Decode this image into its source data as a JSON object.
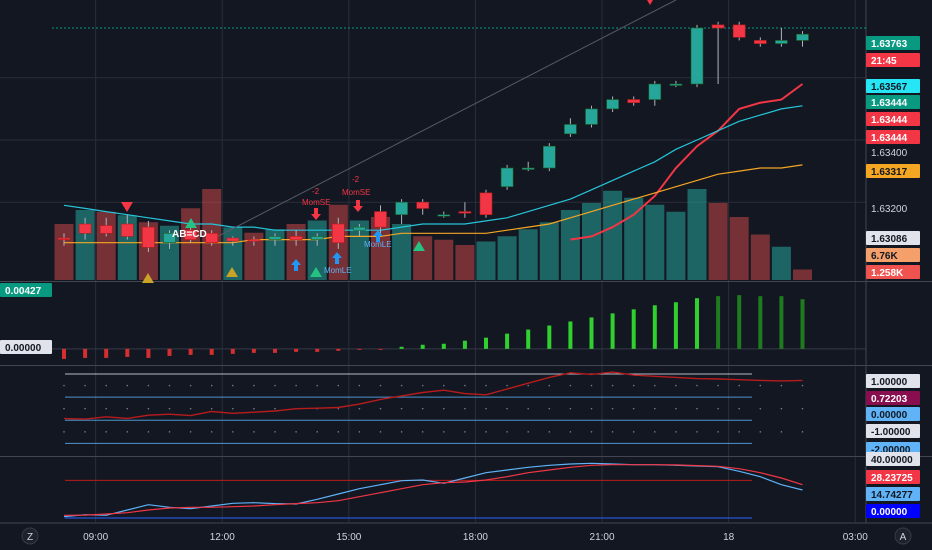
{
  "corner": {
    "left": "Z",
    "right": "A"
  },
  "chart_data": [
    {
      "type": "candlestick",
      "panel": "price",
      "ylim": [
        1.6295,
        1.6385
      ],
      "x_ticks": [
        {
          "label": "09:00",
          "t": 1.5
        },
        {
          "label": "12:00",
          "t": 7.5
        },
        {
          "label": "15:00",
          "t": 13.5
        },
        {
          "label": "18:00",
          "t": 19.5
        },
        {
          "label": "21:00",
          "t": 25.5
        },
        {
          "label": "18",
          "t": 31.5
        },
        {
          "label": "03:00",
          "t": 37.5
        }
      ],
      "y_ticks": [
        1.636,
        1.634,
        1.632
      ],
      "candles": [
        {
          "o": 1.63085,
          "h": 1.631,
          "l": 1.6306,
          "c": 1.6308
        },
        {
          "o": 1.6313,
          "h": 1.6315,
          "l": 1.6308,
          "c": 1.631
        },
        {
          "o": 1.63125,
          "h": 1.6315,
          "l": 1.6309,
          "c": 1.631
        },
        {
          "o": 1.6313,
          "h": 1.6316,
          "l": 1.6308,
          "c": 1.6309
        },
        {
          "o": 1.6312,
          "h": 1.6314,
          "l": 1.6304,
          "c": 1.63055
        },
        {
          "o": 1.6307,
          "h": 1.6311,
          "l": 1.6305,
          "c": 1.631
        },
        {
          "o": 1.6311,
          "h": 1.6312,
          "l": 1.6307,
          "c": 1.6308
        },
        {
          "o": 1.631,
          "h": 1.6311,
          "l": 1.6306,
          "c": 1.6307
        },
        {
          "o": 1.63085,
          "h": 1.6309,
          "l": 1.6306,
          "c": 1.63075
        },
        {
          "o": 1.6308,
          "h": 1.6309,
          "l": 1.6306,
          "c": 1.63075
        },
        {
          "o": 1.6308,
          "h": 1.631,
          "l": 1.6306,
          "c": 1.6309
        },
        {
          "o": 1.6309,
          "h": 1.6311,
          "l": 1.6306,
          "c": 1.6308
        },
        {
          "o": 1.6308,
          "h": 1.631,
          "l": 1.6306,
          "c": 1.6309
        },
        {
          "o": 1.6313,
          "h": 1.6315,
          "l": 1.6305,
          "c": 1.6307
        },
        {
          "o": 1.6311,
          "h": 1.6313,
          "l": 1.6309,
          "c": 1.6312
        },
        {
          "o": 1.6317,
          "h": 1.6319,
          "l": 1.631,
          "c": 1.6312
        },
        {
          "o": 1.6316,
          "h": 1.6321,
          "l": 1.6313,
          "c": 1.632
        },
        {
          "o": 1.632,
          "h": 1.6321,
          "l": 1.6316,
          "c": 1.6318
        },
        {
          "o": 1.6316,
          "h": 1.6317,
          "l": 1.6315,
          "c": 1.6316
        },
        {
          "o": 1.6317,
          "h": 1.632,
          "l": 1.6315,
          "c": 1.63165
        },
        {
          "o": 1.6323,
          "h": 1.6324,
          "l": 1.6315,
          "c": 1.6316
        },
        {
          "o": 1.6325,
          "h": 1.6332,
          "l": 1.6324,
          "c": 1.6331
        },
        {
          "o": 1.6331,
          "h": 1.6333,
          "l": 1.633,
          "c": 1.6331
        },
        {
          "o": 1.6331,
          "h": 1.6339,
          "l": 1.633,
          "c": 1.6338
        },
        {
          "o": 1.6342,
          "h": 1.6347,
          "l": 1.6341,
          "c": 1.6345
        },
        {
          "o": 1.6345,
          "h": 1.6351,
          "l": 1.6344,
          "c": 1.635
        },
        {
          "o": 1.635,
          "h": 1.6354,
          "l": 1.6349,
          "c": 1.6353
        },
        {
          "o": 1.6353,
          "h": 1.6354,
          "l": 1.6351,
          "c": 1.6352
        },
        {
          "o": 1.6353,
          "h": 1.6359,
          "l": 1.6351,
          "c": 1.6358
        },
        {
          "o": 1.6358,
          "h": 1.6359,
          "l": 1.6357,
          "c": 1.6358
        },
        {
          "o": 1.6358,
          "h": 1.6377,
          "l": 1.6357,
          "c": 1.6376
        },
        {
          "o": 1.6377,
          "h": 1.6378,
          "l": 1.6358,
          "c": 1.6376
        },
        {
          "o": 1.6377,
          "h": 1.6378,
          "l": 1.6372,
          "c": 1.6373
        },
        {
          "o": 1.6372,
          "h": 1.6373,
          "l": 1.637,
          "c": 1.6371
        },
        {
          "o": 1.6371,
          "h": 1.6376,
          "l": 1.637,
          "c": 1.6372
        },
        {
          "o": 1.6372,
          "h": 1.6375,
          "l": 1.637,
          "c": 1.6374
        }
      ],
      "volume": [
        {
          "v": 3.2,
          "up": false
        },
        {
          "v": 4.0,
          "up": true
        },
        {
          "v": 3.9,
          "up": false
        },
        {
          "v": 3.7,
          "up": true
        },
        {
          "v": 3.3,
          "up": false
        },
        {
          "v": 3.1,
          "up": true
        },
        {
          "v": 4.1,
          "up": false
        },
        {
          "v": 5.2,
          "up": false
        },
        {
          "v": 3.0,
          "up": true
        },
        {
          "v": 2.7,
          "up": false
        },
        {
          "v": 2.9,
          "up": true
        },
        {
          "v": 3.2,
          "up": false
        },
        {
          "v": 3.4,
          "up": true
        },
        {
          "v": 4.3,
          "up": false
        },
        {
          "v": 3.4,
          "up": true
        },
        {
          "v": 3.6,
          "up": false
        },
        {
          "v": 3.2,
          "up": true
        },
        {
          "v": 2.5,
          "up": false
        },
        {
          "v": 2.3,
          "up": false
        },
        {
          "v": 2.0,
          "up": false
        },
        {
          "v": 2.2,
          "up": true
        },
        {
          "v": 2.5,
          "up": true
        },
        {
          "v": 2.9,
          "up": true
        },
        {
          "v": 3.3,
          "up": true
        },
        {
          "v": 4.0,
          "up": true
        },
        {
          "v": 4.4,
          "up": true
        },
        {
          "v": 5.1,
          "up": true
        },
        {
          "v": 4.7,
          "up": true
        },
        {
          "v": 4.3,
          "up": true
        },
        {
          "v": 3.9,
          "up": true
        },
        {
          "v": 5.2,
          "up": true
        },
        {
          "v": 4.4,
          "up": false
        },
        {
          "v": 3.6,
          "up": false
        },
        {
          "v": 2.6,
          "up": false
        },
        {
          "v": 1.9,
          "up": true
        },
        {
          "v": 0.6,
          "up": false
        }
      ],
      "overlays": [
        {
          "color": "#f23645",
          "values": [
            null,
            null,
            null,
            null,
            null,
            null,
            null,
            null,
            null,
            null,
            null,
            null,
            null,
            null,
            null,
            null,
            null,
            null,
            null,
            null,
            null,
            null,
            null,
            null,
            1.6308,
            1.6309,
            1.6312,
            1.6316,
            1.6322,
            1.6331,
            1.6338,
            1.6343,
            1.635,
            1.6352,
            1.6353,
            1.6358
          ]
        },
        {
          "color": "#26c6da",
          "values": [
            1.6319,
            1.6318,
            1.6317,
            1.6316,
            1.6315,
            1.6314,
            1.6313,
            1.6313,
            1.6312,
            1.6312,
            1.6311,
            1.6311,
            1.6311,
            1.6311,
            1.6311,
            1.6311,
            1.6312,
            1.6313,
            1.6313,
            1.6313,
            1.6314,
            1.6315,
            1.6317,
            1.6319,
            1.6321,
            1.6324,
            1.6327,
            1.633,
            1.6333,
            1.6337,
            1.634,
            1.6343,
            1.6346,
            1.6348,
            1.635,
            1.6351
          ]
        },
        {
          "color": "#f5a623",
          "values": [
            1.6307,
            1.6307,
            1.6307,
            1.6307,
            1.6307,
            1.6307,
            1.6307,
            1.6307,
            1.6307,
            1.6308,
            1.6308,
            1.6308,
            1.6308,
            1.6309,
            1.6309,
            1.6309,
            1.631,
            1.631,
            1.631,
            1.631,
            1.631,
            1.6311,
            1.6312,
            1.6313,
            1.6315,
            1.6317,
            1.6319,
            1.6321,
            1.6323,
            1.6325,
            1.6327,
            1.6329,
            1.633,
            1.6331,
            1.6331,
            1.6332
          ]
        }
      ],
      "level_line": 1.6376,
      "annotations": [
        "AB=CD",
        "-2",
        "MomSE",
        "MomLE"
      ],
      "price_labels": [
        {
          "text": "1.63763",
          "bg": "#089981",
          "fg": "#ffffff"
        },
        {
          "text": "21:45",
          "bg": "#f23645",
          "fg": "#ffffff"
        },
        {
          "text": "1.63567",
          "bg": "#26e6f6",
          "fg": "#131722"
        },
        {
          "text": "1.63444",
          "bg": "#089981",
          "fg": "#ffffff"
        },
        {
          "text": "1.63444",
          "bg": "#f23645",
          "fg": "#ffffff"
        },
        {
          "text": "1.63444",
          "bg": "#f23645",
          "fg": "#ffffff"
        },
        {
          "text": "1.63400",
          "bg": "",
          "fg": "#d1d4dc"
        },
        {
          "text": "1.63317",
          "bg": "#f5a623",
          "fg": "#131722"
        },
        {
          "text": "1.63200",
          "bg": "",
          "fg": "#d1d4dc"
        },
        {
          "text": "1.63086",
          "bg": "#e0e3eb",
          "fg": "#131722"
        },
        {
          "text": "6.76K",
          "bg": "#f5a06a",
          "fg": "#131722"
        },
        {
          "text": "1.258K",
          "bg": "#ef5350",
          "fg": "#ffffff"
        }
      ]
    },
    {
      "type": "bar",
      "panel": "momentum",
      "ylim": [
        -0.0015,
        0.0065
      ],
      "values": [
        -0.001,
        -0.0009,
        -0.0009,
        -0.0008,
        -0.0009,
        -0.0007,
        -0.0006,
        -0.0006,
        -0.0005,
        -0.0004,
        -0.0004,
        -0.0003,
        -0.0003,
        -0.0002,
        -0.0001,
        -0.0001,
        0.0002,
        0.0004,
        0.0005,
        0.0008,
        0.0011,
        0.0015,
        0.0019,
        0.0023,
        0.0027,
        0.0031,
        0.0035,
        0.0039,
        0.0043,
        0.0046,
        0.005,
        0.0052,
        0.0053,
        0.0052,
        0.0052,
        0.0049
      ],
      "price_labels": [
        {
          "text": "0.00427",
          "bg": "#089981",
          "fg": "#ffffff"
        },
        {
          "text": "0.00000",
          "bg": "#e0e3eb",
          "fg": "#131722"
        }
      ]
    },
    {
      "type": "line",
      "panel": "oscillator",
      "ylim": [
        -2.5,
        1.3
      ],
      "series_values": [
        -0.93,
        -0.95,
        -0.85,
        -0.92,
        -0.78,
        -0.74,
        -0.8,
        -0.62,
        -0.7,
        -0.65,
        -0.6,
        -0.5,
        -0.48,
        -0.45,
        -0.3,
        -0.1,
        0.05,
        0.2,
        0.3,
        0.15,
        0.1,
        0.35,
        0.6,
        0.85,
        1.05,
        0.98,
        1.08,
        0.95,
        0.9,
        0.85,
        0.8,
        0.78,
        0.75,
        0.72,
        0.7,
        0.72
      ],
      "levels": [
        1.0,
        0.0,
        -1.0,
        -2.0
      ],
      "price_labels": [
        {
          "text": "1.00000",
          "bg": "#e0e3eb",
          "fg": "#131722"
        },
        {
          "text": "0.72203",
          "bg": "#880e4f",
          "fg": "#ffffff"
        },
        {
          "text": "0.00000",
          "bg": "#5fb3f6",
          "fg": "#131722"
        },
        {
          "text": "-1.00000",
          "bg": "#e0e3eb",
          "fg": "#131722"
        },
        {
          "text": "-2.00000",
          "bg": "#5fb3f6",
          "fg": "#131722"
        }
      ]
    },
    {
      "type": "line",
      "panel": "stochastic",
      "ylim": [
        -3,
        45
      ],
      "series": [
        {
          "color": "#5fb3f6",
          "values": [
            1.0,
            2.5,
            2.0,
            6.0,
            10.0,
            8.0,
            7.0,
            9.0,
            11.0,
            11.5,
            10.8,
            10.5,
            14.0,
            18.0,
            22.0,
            25.0,
            28.0,
            28.5,
            26.0,
            30.0,
            34.0,
            36.0,
            38.0,
            39.5,
            40.5,
            41.0,
            40.5,
            40.0,
            40.0,
            39.5,
            39.0,
            38.5,
            35.0,
            31.0,
            25.0,
            21.0
          ]
        },
        {
          "color": "#f23645",
          "values": [
            2.0,
            2.2,
            3.0,
            4.0,
            6.0,
            7.5,
            8.0,
            8.0,
            8.5,
            9.0,
            10.0,
            10.8,
            11.5,
            13.0,
            16.0,
            19.0,
            22.0,
            25.0,
            26.5,
            27.0,
            28.5,
            31.0,
            34.0,
            36.0,
            38.0,
            39.5,
            40.0,
            40.0,
            40.0,
            39.8,
            39.3,
            38.8,
            37.0,
            34.0,
            30.0,
            25.0
          ]
        }
      ],
      "levels": [
        28.23725,
        0.0
      ],
      "price_labels": [
        {
          "text": "40.00000",
          "bg": "#e0e3eb",
          "fg": "#131722"
        },
        {
          "text": "28.23725",
          "bg": "#f23645",
          "fg": "#ffffff"
        },
        {
          "text": "14.74277",
          "bg": "#5fb3f6",
          "fg": "#131722"
        },
        {
          "text": "0.00000",
          "bg": "#0000ff",
          "fg": "#ffffff"
        }
      ]
    }
  ]
}
